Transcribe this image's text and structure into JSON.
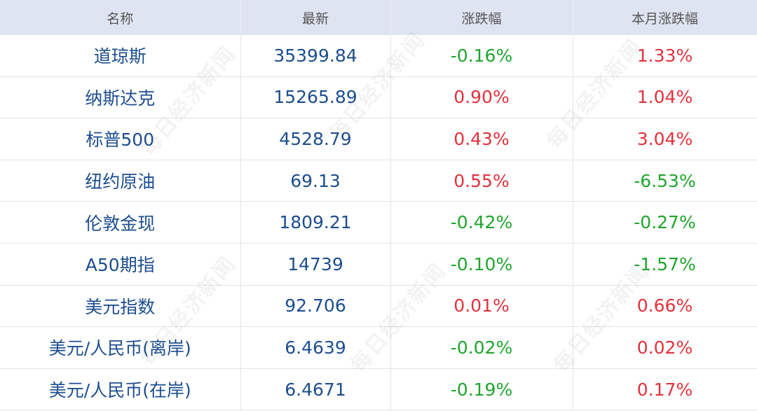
{
  "table": {
    "header": [
      "名称",
      "最新",
      "涨跌幅",
      "本月涨跌幅"
    ],
    "rows": [
      [
        "道琼斯",
        "35399.84",
        "-0.16%",
        "1.33%"
      ],
      [
        "纳斯达克",
        "15265.89",
        "0.90%",
        "1.04%"
      ],
      [
        "标普500",
        "4528.79",
        "0.43%",
        "3.04%"
      ],
      [
        "纽约原油",
        "69.13",
        "0.55%",
        "-6.53%"
      ],
      [
        "伦敦金现",
        "1809.21",
        "-0.42%",
        "-0.27%"
      ],
      [
        "A50期指",
        "14739",
        "-0.10%",
        "-1.57%"
      ],
      [
        "美元指数",
        "92.706",
        "0.01%",
        "0.66%"
      ],
      [
        "美元/人民币(离岸)",
        "6.4639",
        "-0.02%",
        "0.02%"
      ],
      [
        "美元/人民币(在岸)",
        "6.4671",
        "-0.19%",
        "0.17%"
      ]
    ]
  },
  "watermark": "每日经济新闻"
}
